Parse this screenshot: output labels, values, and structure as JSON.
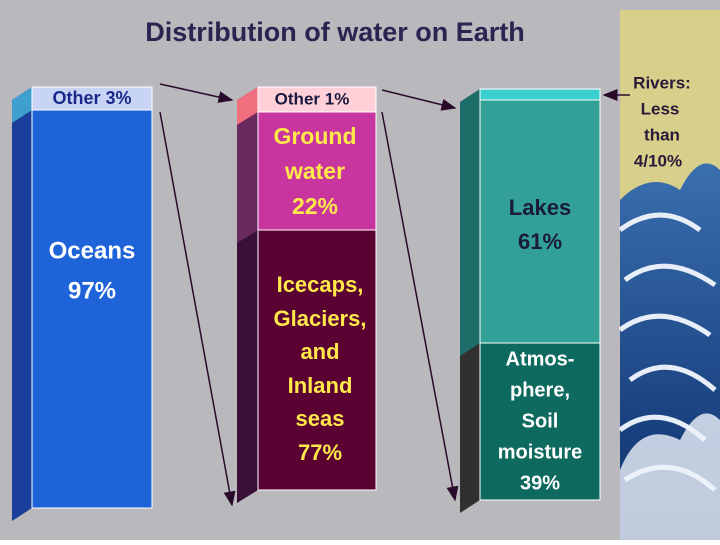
{
  "title": "Distribution of water on Earth",
  "columns": [
    {
      "segments": [
        {
          "lines": [
            "Other  3%"
          ]
        },
        {
          "lines": [
            "Oceans",
            "97%"
          ]
        }
      ]
    },
    {
      "segments": [
        {
          "lines": [
            "Other 1%"
          ]
        },
        {
          "lines": [
            "Ground",
            "water",
            "22%"
          ]
        },
        {
          "lines": [
            "Icecaps,",
            "Glaciers,",
            "and",
            "Inland",
            "seas",
            "77%"
          ]
        }
      ]
    },
    {
      "segments": [
        {
          "lines": [
            "Lakes",
            "61%"
          ]
        },
        {
          "lines": [
            "Atmos-",
            "phere,",
            "Soil",
            "moisture",
            "39%"
          ]
        }
      ]
    }
  ],
  "note": {
    "lines": [
      "Rivers:",
      "Less",
      "than",
      "4/10%"
    ]
  }
}
